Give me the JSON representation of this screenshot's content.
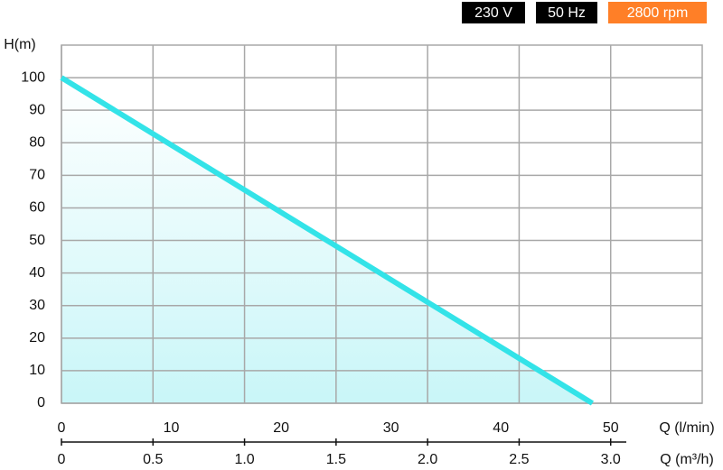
{
  "chart_data": {
    "type": "line",
    "badges": [
      {
        "text": "230 V",
        "color": "#000000"
      },
      {
        "text": "50 Hz",
        "color": "#000000"
      },
      {
        "text": "2800 rpm",
        "color": "#ff7f27"
      }
    ],
    "y_label": "H(m)",
    "x_label": "Q (m³/h)",
    "x2_label": "Q (l/min)",
    "x": [
      0,
      2.9
    ],
    "series": [
      {
        "color": "#33e3e8",
        "values": [
          100,
          0
        ]
      }
    ],
    "xlim": [
      0,
      3.5
    ],
    "xticks": [
      0,
      0.5,
      {
        "value": 1,
        "label": "1.0"
      },
      1.5,
      {
        "value": 2,
        "label": "2.0"
      },
      2.5,
      {
        "value": 3,
        "label": "3.0"
      }
    ],
    "x2lim": [
      0,
      58.33
    ],
    "x2ticks": [
      0,
      10,
      20,
      30,
      40,
      50
    ],
    "ylim": [
      0,
      110
    ],
    "yticks": [
      0,
      10,
      20,
      30,
      40,
      50,
      60,
      70,
      80,
      90,
      100
    ],
    "grid": true
  }
}
